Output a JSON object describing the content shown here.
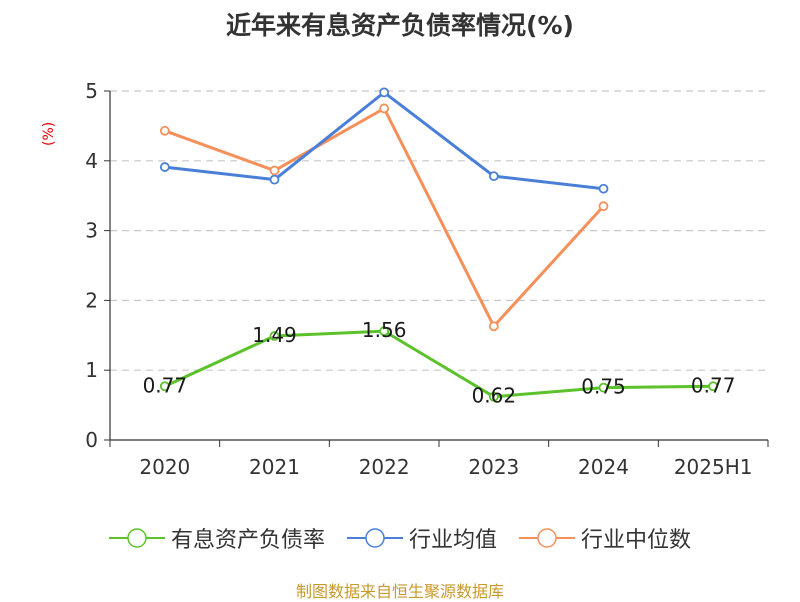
{
  "chart_data": {
    "type": "line",
    "title": "近年来有息资产负债率情况(%)",
    "ylabel": "(%)",
    "categories": [
      "2020",
      "2021",
      "2022",
      "2023",
      "2024",
      "2025H1"
    ],
    "ylim": [
      0,
      5
    ],
    "yticks": [
      "0",
      "1",
      "2",
      "3",
      "4",
      "5"
    ],
    "grid": true,
    "legend_position": "bottom",
    "series": [
      {
        "name": "有息资产负债率",
        "color": "#5cc22b",
        "values": [
          0.77,
          1.49,
          1.56,
          0.62,
          0.75,
          0.77
        ],
        "data_labels": [
          "0.77",
          "1.49",
          "1.56",
          "0.62",
          "0.75",
          "0.77"
        ]
      },
      {
        "name": "行业均值",
        "color": "#4a7fd8",
        "values": [
          3.91,
          3.73,
          4.98,
          3.78,
          3.6,
          null
        ]
      },
      {
        "name": "行业中位数",
        "color": "#f5905a",
        "values": [
          4.43,
          3.86,
          4.75,
          1.63,
          3.35,
          null
        ]
      }
    ]
  },
  "source": "制图数据来自恒生聚源数据库"
}
